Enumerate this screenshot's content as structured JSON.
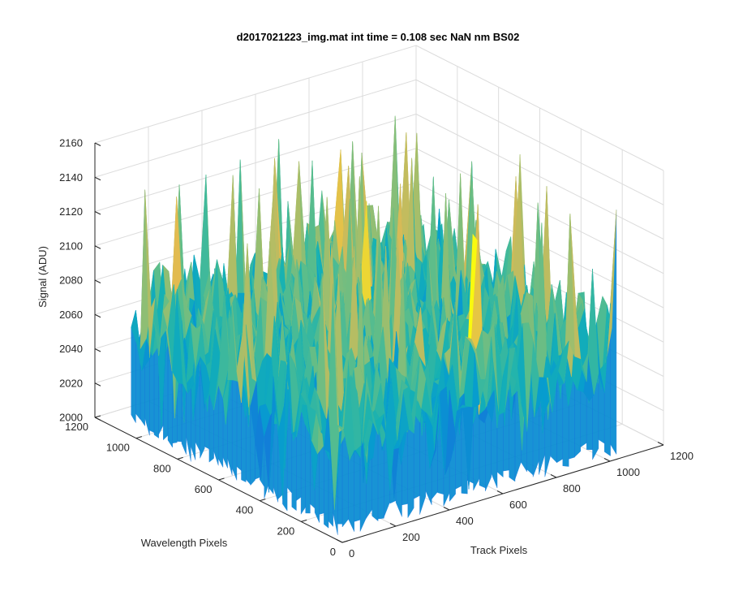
{
  "chart_data": {
    "type": "surface",
    "title": "d2017021223_img.mat int time = 0.108 sec  NaN nm BS02",
    "xlabel": "Track Pixels",
    "ylabel": "Wavelength Pixels",
    "zlabel": "Signal (ADU)",
    "xlim": [
      0,
      1200
    ],
    "ylim": [
      0,
      1200
    ],
    "zlim": [
      2000,
      2160
    ],
    "x_ticks": [
      "0",
      "200",
      "400",
      "600",
      "800",
      "1000",
      "1200"
    ],
    "y_ticks": [
      "0",
      "200",
      "400",
      "600",
      "800",
      "1000",
      "1200"
    ],
    "z_ticks": [
      "2000",
      "2020",
      "2040",
      "2060",
      "2080",
      "2100",
      "2120",
      "2140",
      "2160"
    ],
    "data_extent": {
      "x": [
        0,
        1024
      ],
      "y": [
        0,
        1024
      ]
    },
    "typical_signal_range": [
      2020,
      2105
    ],
    "peak_signal": 2150,
    "colormap": "parula",
    "grid": true
  }
}
